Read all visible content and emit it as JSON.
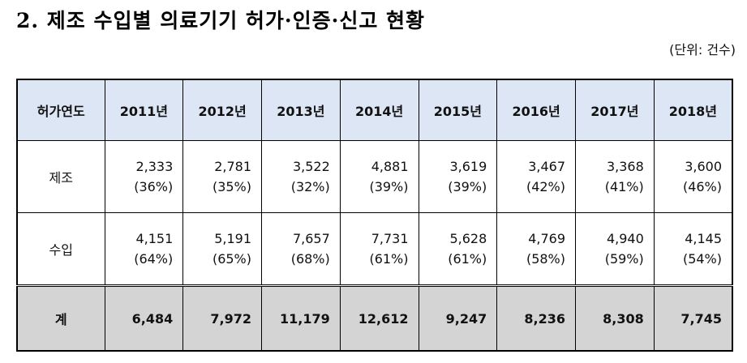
{
  "title": "2. 제조 수입별 의료기기 허가·인증·신고 현황",
  "unit": "(단위: 건수)",
  "table": {
    "corner": "허가연도",
    "years": [
      "2011년",
      "2012년",
      "2013년",
      "2014년",
      "2015년",
      "2016년",
      "2017년",
      "2018년"
    ],
    "rows": [
      {
        "label": "제조",
        "values": [
          "2,333",
          "2,781",
          "3,522",
          "4,881",
          "3,619",
          "3,467",
          "3,368",
          "3,600"
        ],
        "shares": [
          "(36%)",
          "(35%)",
          "(32%)",
          "(39%)",
          "(39%)",
          "(42%)",
          "(41%)",
          "(46%)"
        ]
      },
      {
        "label": "수입",
        "values": [
          "4,151",
          "5,191",
          "7,657",
          "7,731",
          "5,628",
          "4,769",
          "4,940",
          "4,145"
        ],
        "shares": [
          "(64%)",
          "(65%)",
          "(68%)",
          "(61%)",
          "(61%)",
          "(58%)",
          "(59%)",
          "(54%)"
        ]
      }
    ],
    "total": {
      "label": "계",
      "values": [
        "6,484",
        "7,972",
        "11,179",
        "12,612",
        "9,247",
        "8,236",
        "8,308",
        "7,745"
      ]
    }
  }
}
